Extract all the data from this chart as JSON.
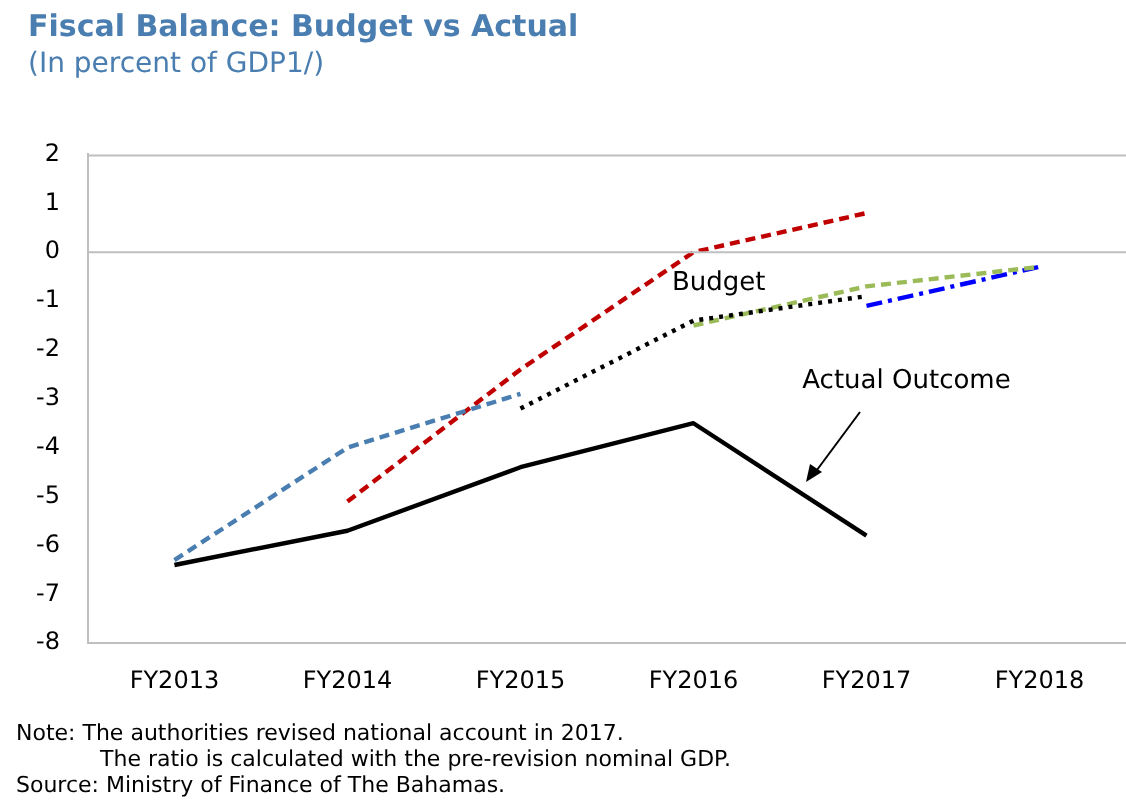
{
  "chart_data": {
    "type": "line",
    "title": "Fiscal Balance: Budget vs Actual",
    "subtitle": "(In percent of GDP1/)",
    "categories": [
      "FY2013",
      "FY2014",
      "FY2015",
      "FY2016",
      "FY2017",
      "FY2018"
    ],
    "series": [
      {
        "color": "#4a7eb0",
        "line_style": "dashed",
        "values": [
          -6.3,
          -4.0,
          -2.9,
          null,
          null,
          null
        ]
      },
      {
        "color": "#c00000",
        "line_style": "dashed",
        "values": [
          null,
          -5.1,
          -2.4,
          0.0,
          0.8,
          null
        ]
      },
      {
        "color": "#000000",
        "line_style": "dotted",
        "values": [
          null,
          null,
          -3.2,
          -1.4,
          -0.9,
          null
        ]
      },
      {
        "color": "#9bbb59",
        "line_style": "dashed",
        "values": [
          null,
          null,
          null,
          -1.5,
          -0.7,
          -0.3
        ]
      },
      {
        "color": "#0000ff",
        "line_style": "dashdot",
        "values": [
          null,
          null,
          null,
          null,
          -1.1,
          -0.3
        ]
      },
      {
        "name": "Actual Outcome",
        "color": "#000000",
        "line_style": "solid",
        "values": [
          -6.4,
          -5.7,
          -4.4,
          -3.5,
          -5.8,
          null
        ]
      }
    ],
    "ylim": [
      -8,
      2
    ],
    "yticks": [
      -8,
      -7,
      -6,
      -5,
      -4,
      -3,
      -2,
      -1,
      0,
      1,
      2
    ],
    "ref_lines": [
      {
        "axis": "y",
        "value": 0,
        "color": "#bfbfbf"
      }
    ],
    "grid": false,
    "legend": false,
    "marker": "none",
    "annotations": [
      "Budget",
      "Note:  The authorities revised national account in 2017.",
      "The ratio is calculated with the pre-revision nominal GDP.",
      "Source: Ministry of Finance of The Bahamas."
    ]
  }
}
